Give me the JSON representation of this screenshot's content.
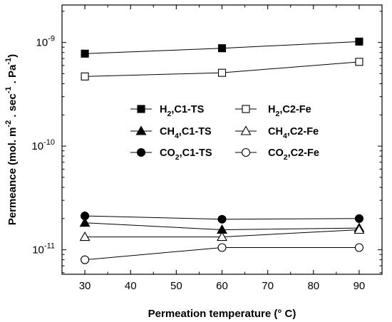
{
  "chart_data": {
    "type": "line",
    "title": "",
    "xlabel": "Permeation temperature (° C)",
    "ylabel": "Permeance (mol. m-2 . sec-1 . Pa-1)",
    "xlim": [
      25,
      95
    ],
    "ylim": [
      5.8e-12,
      2.3e-09
    ],
    "yscale": "log",
    "grid": false,
    "legend_position": "center-right",
    "x_ticks": [
      30,
      40,
      50,
      60,
      70,
      80,
      90
    ],
    "y_ticks": [
      {
        "value": 1e-11,
        "mantissa": "10",
        "exponent": "-11"
      },
      {
        "value": 1e-10,
        "mantissa": "10",
        "exponent": "-10"
      },
      {
        "value": 1e-09,
        "mantissa": "10",
        "exponent": "-9"
      }
    ],
    "x": [
      30,
      60,
      90
    ],
    "series": [
      {
        "gas": "H",
        "sub": "2",
        "membrane": ",C1-TS",
        "marker": "square",
        "filled": true,
        "values": [
          7.8e-10,
          8.8e-10,
          1.02e-09
        ]
      },
      {
        "gas": "H",
        "sub": "2",
        "membrane": ",C2-Fe",
        "marker": "square",
        "filled": false,
        "values": [
          4.7e-10,
          5.1e-10,
          6.5e-10
        ]
      },
      {
        "gas": "CH",
        "sub": "4",
        "membrane": ",C1-TS",
        "marker": "triangle",
        "filled": true,
        "values": [
          1.82e-11,
          1.56e-11,
          1.62e-11
        ]
      },
      {
        "gas": "CH",
        "sub": "4",
        "membrane": ",C2-Fe",
        "marker": "triangle",
        "filled": false,
        "values": [
          1.33e-11,
          1.33e-11,
          1.56e-11
        ]
      },
      {
        "gas": "CO",
        "sub": "2",
        "membrane": ",C1-TS",
        "marker": "circle",
        "filled": true,
        "values": [
          2.12e-11,
          1.97e-11,
          2e-11
        ]
      },
      {
        "gas": "CO",
        "sub": "2",
        "membrane": ",C2-Fe",
        "marker": "circle",
        "filled": false,
        "values": [
          8e-12,
          1.05e-11,
          1.05e-11
        ]
      }
    ]
  }
}
